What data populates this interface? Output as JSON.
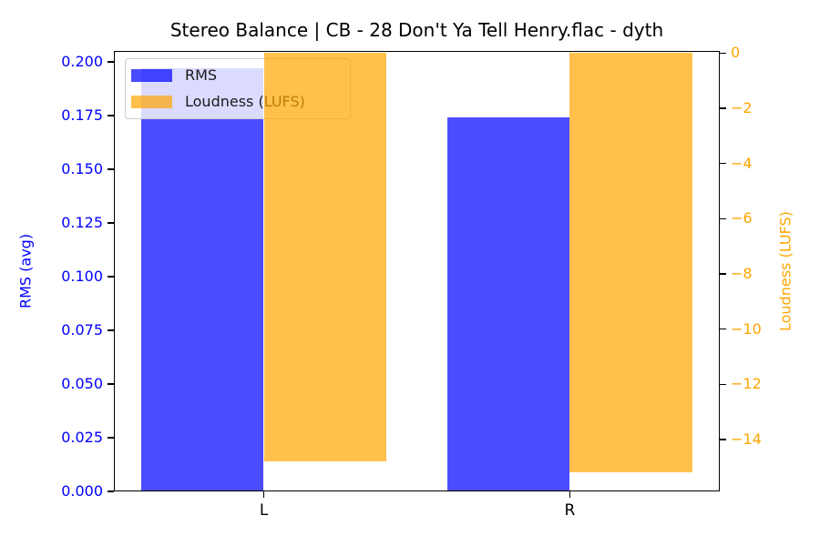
{
  "chart_data": {
    "type": "bar",
    "title": "Stereo Balance | CB - 28 Don't Ya Tell Henry.flac - dyth",
    "categories": [
      "L",
      "R"
    ],
    "bar_width": 0.4,
    "xlim": [
      -0.49,
      1.49
    ],
    "grid": false,
    "series": [
      {
        "name": "RMS",
        "axis": "left",
        "color": "rgba(0,0,255,0.7)",
        "offset": -0.2,
        "values": [
          0.197,
          0.174
        ]
      },
      {
        "name": "Loudness (LUFS)",
        "axis": "right",
        "color": "rgba(255,165,0,0.7)",
        "offset": 0.2,
        "values": [
          -14.8,
          -15.2
        ]
      }
    ],
    "left_axis": {
      "label": "RMS (avg)",
      "color": "#0000ff",
      "range_bottom": 0,
      "range_top": 0.2051,
      "ticks": [
        {
          "value": 0.0,
          "label": "0.000"
        },
        {
          "value": 0.025,
          "label": "0.025"
        },
        {
          "value": 0.05,
          "label": "0.050"
        },
        {
          "value": 0.075,
          "label": "0.075"
        },
        {
          "value": 0.1,
          "label": "0.100"
        },
        {
          "value": 0.125,
          "label": "0.125"
        },
        {
          "value": 0.15,
          "label": "0.150"
        },
        {
          "value": 0.175,
          "label": "0.175"
        },
        {
          "value": 0.2,
          "label": "0.200"
        }
      ]
    },
    "right_axis": {
      "label": "Loudness (LUFS)",
      "color": "#ffa500",
      "range_bottom": -15.88,
      "range_top": 0.08,
      "ticks": [
        {
          "value": 0,
          "label": "0"
        },
        {
          "value": -2,
          "label": "−2"
        },
        {
          "value": -4,
          "label": "−4"
        },
        {
          "value": -6,
          "label": "−6"
        },
        {
          "value": -8,
          "label": "−8"
        },
        {
          "value": -10,
          "label": "−10"
        },
        {
          "value": -12,
          "label": "−12"
        },
        {
          "value": -14,
          "label": "−14"
        }
      ]
    },
    "x_axis": {
      "color": "#000000",
      "tick_labels": [
        "L",
        "R"
      ]
    },
    "legend": {
      "position": "upper-left",
      "entries": [
        "RMS",
        "Loudness (LUFS)"
      ]
    },
    "colors": {
      "spine": "#000000",
      "background": "#ffffff",
      "legend_bg": "rgba(255,255,255,0.8)"
    }
  }
}
